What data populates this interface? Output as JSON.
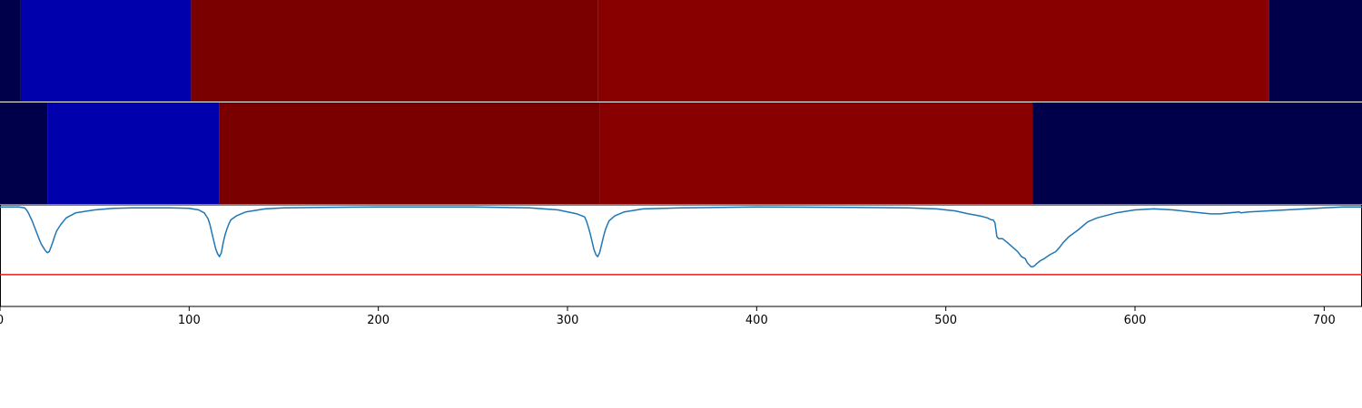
{
  "chart_data": {
    "type": "heatmap",
    "xlim": [
      0,
      720
    ],
    "xticks": [
      0,
      100,
      200,
      300,
      400,
      500,
      600,
      700
    ],
    "xtick_labels": [
      "0",
      "100",
      "200",
      "300",
      "400",
      "500",
      "600",
      "700"
    ],
    "rows": [
      {
        "segments": [
          {
            "start": 0,
            "end": 11,
            "color": "#00004a"
          },
          {
            "start": 11,
            "end": 101,
            "color": "#0000ad"
          },
          {
            "start": 101,
            "end": 316,
            "color": "#7a0000"
          },
          {
            "start": 316,
            "end": 671,
            "color": "#880000"
          },
          {
            "start": 671,
            "end": 720,
            "color": "#00004a"
          }
        ]
      },
      {
        "segments": [
          {
            "start": 0,
            "end": 25,
            "color": "#00004a"
          },
          {
            "start": 25,
            "end": 116,
            "color": "#0000ad"
          },
          {
            "start": 116,
            "end": 317,
            "color": "#7a0000"
          },
          {
            "start": 317,
            "end": 546,
            "color": "#880000"
          },
          {
            "start": 546,
            "end": 720,
            "color": "#00004a"
          }
        ]
      }
    ],
    "line_panel": {
      "ylim": [
        -1.0,
        0.02
      ],
      "threshold": -0.68,
      "threshold_color": "#e31a1c",
      "line_color": "#1f77b4",
      "x": [
        0,
        5,
        10,
        13,
        14,
        15,
        16,
        17,
        18,
        19,
        20,
        21,
        22,
        23,
        24,
        25,
        26,
        27,
        28,
        29,
        30,
        32,
        35,
        40,
        50,
        60,
        70,
        80,
        90,
        100,
        105,
        108,
        110,
        111,
        112,
        113,
        114,
        115,
        116,
        117,
        118,
        119,
        120,
        121,
        122,
        125,
        130,
        140,
        150,
        170,
        200,
        250,
        280,
        295,
        305,
        309,
        310,
        311,
        312,
        313,
        314,
        315,
        316,
        317,
        318,
        319,
        320,
        321,
        322,
        325,
        330,
        340,
        360,
        400,
        450,
        480,
        495,
        505,
        512,
        518,
        520,
        522,
        524,
        525,
        526,
        527,
        528,
        530,
        532,
        535,
        538,
        540,
        542,
        543,
        544,
        545,
        546,
        547,
        548,
        550,
        552,
        555,
        558,
        560,
        562,
        565,
        570,
        575,
        580,
        590,
        600,
        610,
        620,
        630,
        640,
        645,
        650,
        655,
        656,
        660,
        670,
        680,
        690,
        700,
        710,
        720
      ],
      "y": [
        0,
        0,
        0,
        -0.01,
        -0.03,
        -0.06,
        -0.1,
        -0.14,
        -0.19,
        -0.24,
        -0.29,
        -0.34,
        -0.38,
        -0.41,
        -0.44,
        -0.46,
        -0.45,
        -0.4,
        -0.35,
        -0.29,
        -0.24,
        -0.18,
        -0.11,
        -0.06,
        -0.03,
        -0.015,
        -0.01,
        -0.01,
        -0.01,
        -0.015,
        -0.03,
        -0.06,
        -0.12,
        -0.18,
        -0.26,
        -0.34,
        -0.42,
        -0.47,
        -0.5,
        -0.46,
        -0.36,
        -0.28,
        -0.22,
        -0.17,
        -0.13,
        -0.09,
        -0.05,
        -0.02,
        -0.01,
        -0.005,
        0,
        0,
        -0.01,
        -0.03,
        -0.07,
        -0.1,
        -0.14,
        -0.2,
        -0.27,
        -0.35,
        -0.43,
        -0.48,
        -0.5,
        -0.46,
        -0.38,
        -0.3,
        -0.23,
        -0.18,
        -0.14,
        -0.09,
        -0.05,
        -0.02,
        -0.01,
        0,
        -0.005,
        -0.01,
        -0.02,
        -0.04,
        -0.07,
        -0.09,
        -0.1,
        -0.11,
        -0.13,
        -0.13,
        -0.16,
        -0.3,
        -0.32,
        -0.32,
        -0.35,
        -0.4,
        -0.45,
        -0.5,
        -0.52,
        -0.56,
        -0.58,
        -0.6,
        -0.6,
        -0.59,
        -0.57,
        -0.54,
        -0.52,
        -0.48,
        -0.45,
        -0.41,
        -0.36,
        -0.3,
        -0.23,
        -0.15,
        -0.11,
        -0.06,
        -0.03,
        -0.02,
        -0.03,
        -0.05,
        -0.07,
        -0.07,
        -0.06,
        -0.05,
        -0.06,
        -0.05,
        -0.04,
        -0.03,
        -0.02,
        -0.01,
        0,
        0
      ]
    }
  }
}
